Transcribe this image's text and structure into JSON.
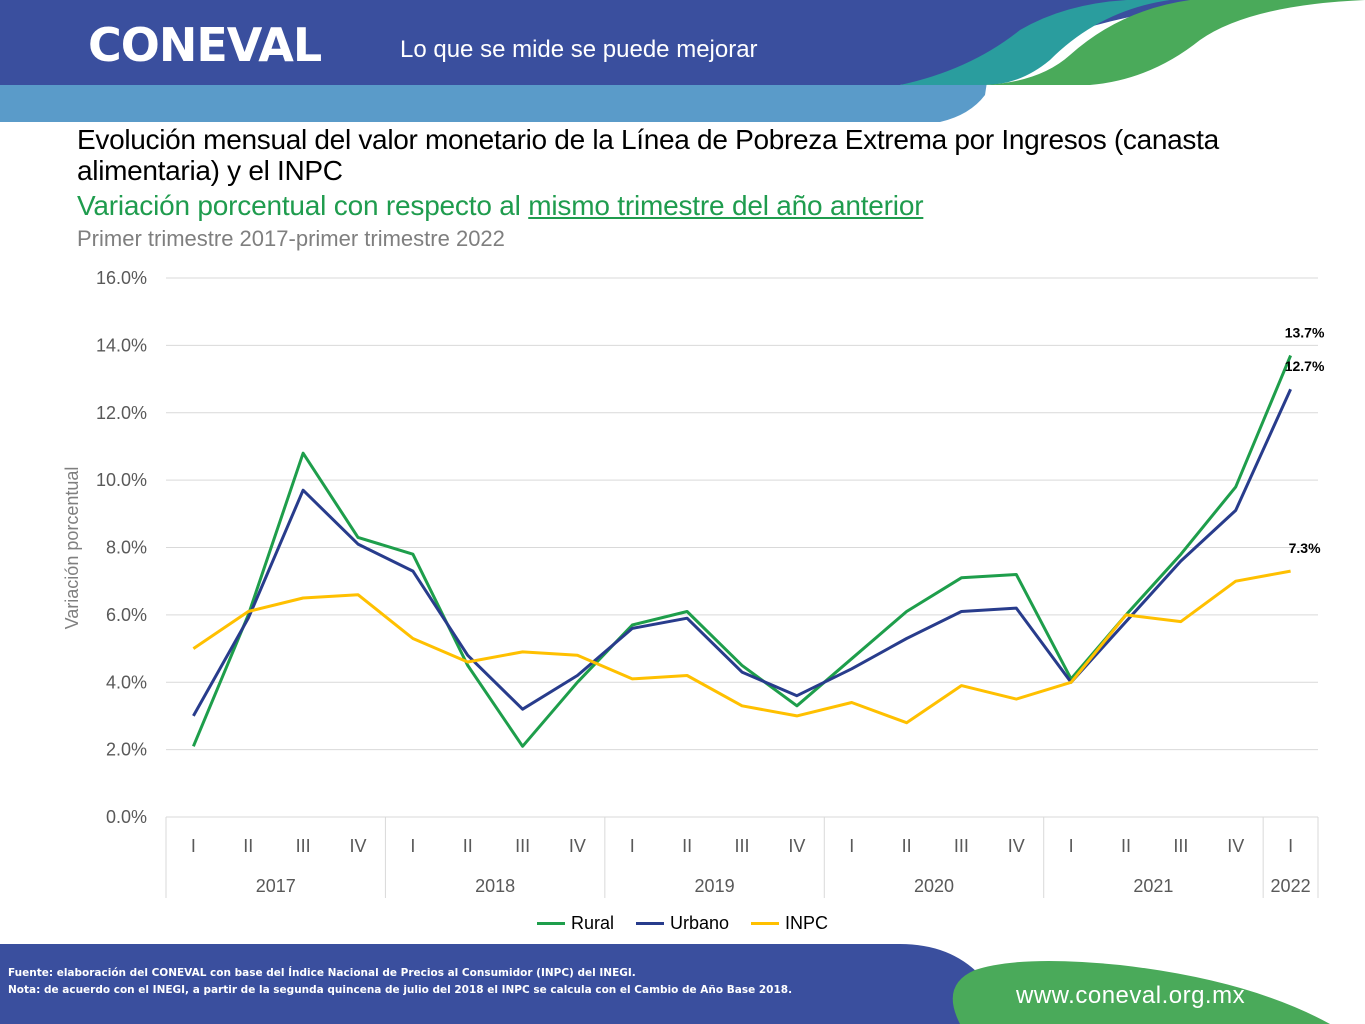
{
  "header": {
    "logo": "CONEVAL",
    "tagline": "Lo que se mide se puede mejorar"
  },
  "title": "Evolución mensual del valor monetario de la Línea de Pobreza Extrema por Ingresos (canasta alimentaria) y el INPC",
  "subtitle_prefix": "Variación porcentual con respecto al ",
  "subtitle_link": "mismo trimestre del año anterior",
  "period": "Primer trimestre 2017-primer trimestre 2022",
  "colors": {
    "rural": "#1e9e4b",
    "urbano": "#283c8c",
    "inpc": "#ffc000",
    "header_blue": "#3a4f9e",
    "header_light": "#5a9bc9",
    "green_accent": "#4aaa5a"
  },
  "chart_data": {
    "type": "line",
    "ylabel": "Variación porcentual",
    "ylim": [
      0,
      16
    ],
    "yticks": [
      "0.0%",
      "2.0%",
      "4.0%",
      "6.0%",
      "8.0%",
      "10.0%",
      "12.0%",
      "14.0%",
      "16.0%"
    ],
    "categories": [
      "I",
      "II",
      "III",
      "IV",
      "I",
      "II",
      "III",
      "IV",
      "I",
      "II",
      "III",
      "IV",
      "I",
      "II",
      "III",
      "IV",
      "I",
      "II",
      "III",
      "IV",
      "I"
    ],
    "years": [
      {
        "label": "2017",
        "count": 4
      },
      {
        "label": "2018",
        "count": 4
      },
      {
        "label": "2019",
        "count": 4
      },
      {
        "label": "2020",
        "count": 4
      },
      {
        "label": "2021",
        "count": 4
      },
      {
        "label": "2022",
        "count": 1
      }
    ],
    "series": [
      {
        "name": "Rural",
        "color": "#1e9e4b",
        "values": [
          2.1,
          6.0,
          10.8,
          8.3,
          7.8,
          4.5,
          2.1,
          4.0,
          5.7,
          6.1,
          4.5,
          3.3,
          4.7,
          6.1,
          7.1,
          7.2,
          4.1,
          6.0,
          7.8,
          9.8,
          13.7
        ],
        "end_label": "13.7%"
      },
      {
        "name": "Urbano",
        "color": "#283c8c",
        "values": [
          3.0,
          5.9,
          9.7,
          8.1,
          7.3,
          4.8,
          3.2,
          4.2,
          5.6,
          5.9,
          4.3,
          3.6,
          4.4,
          5.3,
          6.1,
          6.2,
          4.0,
          5.8,
          7.6,
          9.1,
          12.7
        ],
        "end_label": "12.7%"
      },
      {
        "name": "INPC",
        "color": "#ffc000",
        "values": [
          5.0,
          6.1,
          6.5,
          6.6,
          5.3,
          4.6,
          4.9,
          4.8,
          4.1,
          4.2,
          3.3,
          3.0,
          3.4,
          2.8,
          3.9,
          3.5,
          4.0,
          6.0,
          5.8,
          7.0,
          7.3
        ],
        "end_label": "7.3%"
      }
    ],
    "grid": true,
    "legend_position": "bottom"
  },
  "footer": {
    "source": "Fuente: elaboración del CONEVAL con base del Índice Nacional de Precios al Consumidor (INPC) del INEGI.",
    "note": "Nota: de acuerdo con el INEGI, a partir de la segunda quincena de julio del 2018  el INPC se calcula con el Cambio de Año Base 2018.",
    "website": "www.coneval.org.mx"
  }
}
